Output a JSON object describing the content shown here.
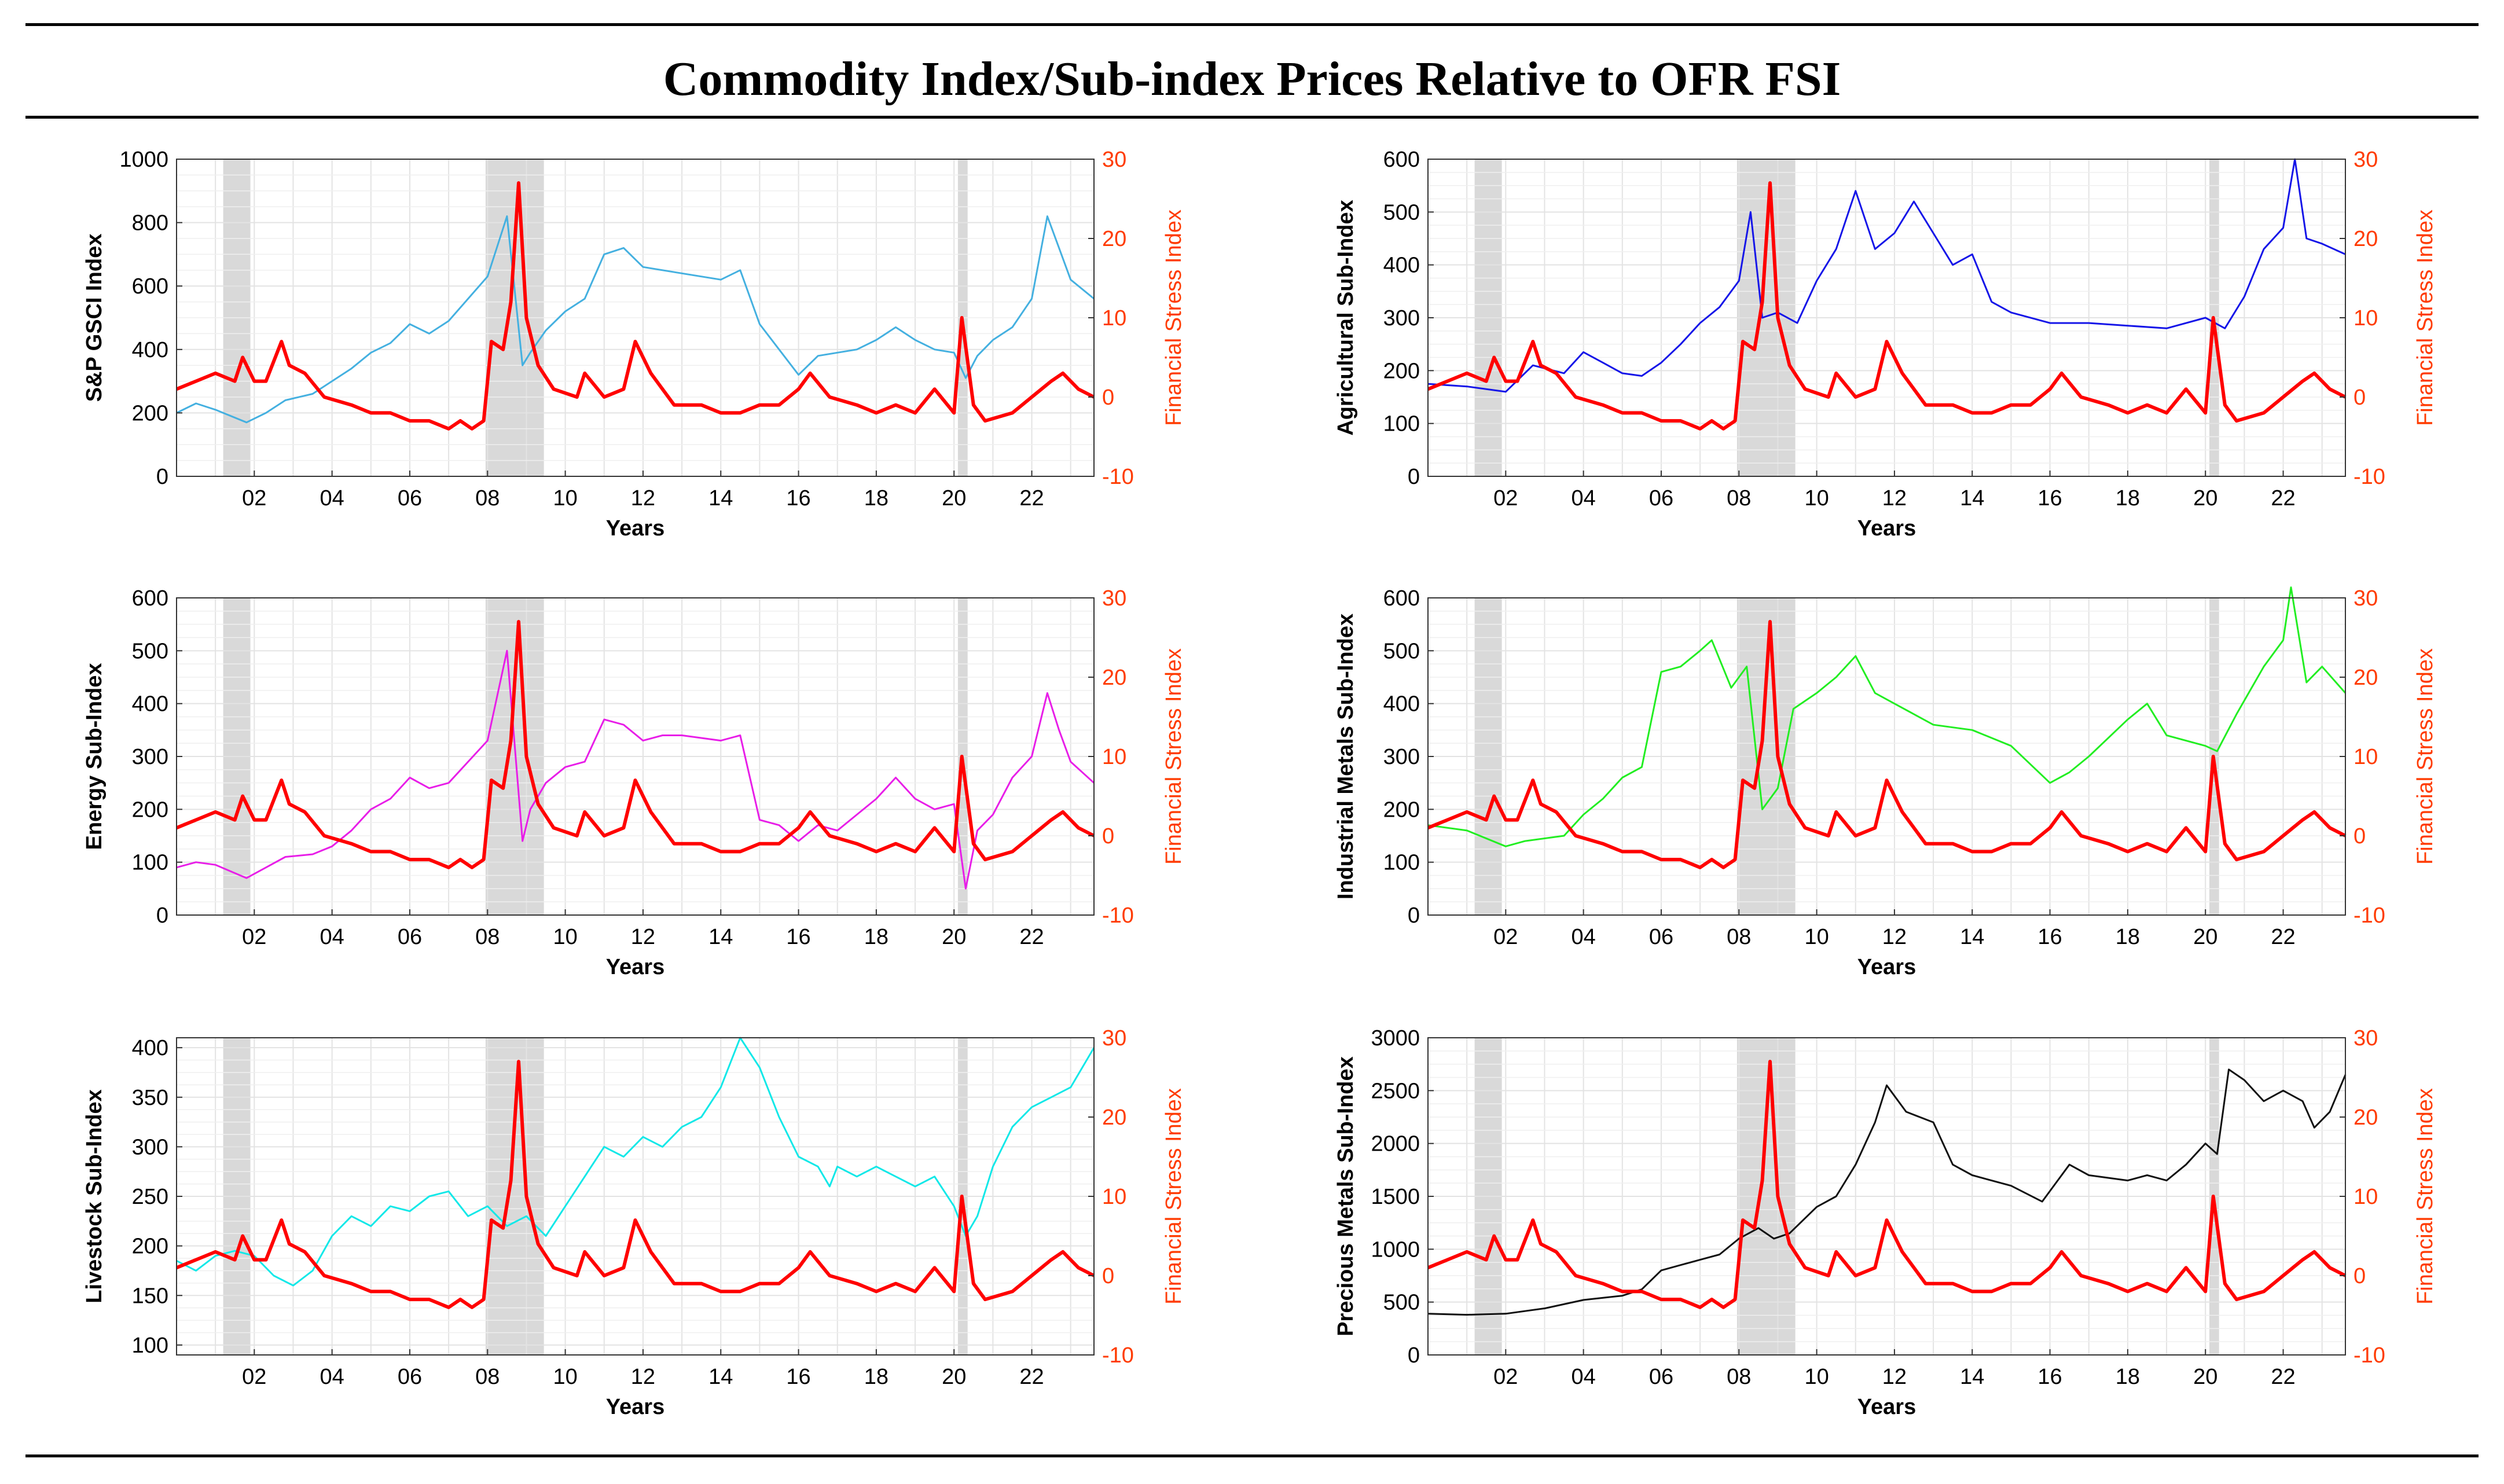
{
  "title": "Commodity Index/Sub-index Prices Relative to OFR FSI",
  "x_tick_labels": [
    "02",
    "04",
    "06",
    "08",
    "10",
    "12",
    "14",
    "16",
    "18",
    "20",
    "22"
  ],
  "right_axis_label": "Financial Stress Index",
  "x_axis_label": "Years",
  "recessions": [
    [
      2001.2,
      2001.9
    ],
    [
      2007.95,
      2009.45
    ],
    [
      2020.1,
      2020.35
    ]
  ],
  "colors": {
    "fsi": "#ff0000",
    "right_axis": "#ff3b00",
    "recession": "#d9d9d9"
  },
  "fsi_series": {
    "name": "OFR FSI",
    "x": [
      2000.0,
      2000.5,
      2001.0,
      2001.5,
      2001.7,
      2002.0,
      2002.3,
      2002.7,
      2002.9,
      2003.3,
      2003.8,
      2004.5,
      2005.0,
      2005.5,
      2006.0,
      2006.5,
      2007.0,
      2007.3,
      2007.6,
      2007.9,
      2008.1,
      2008.4,
      2008.6,
      2008.8,
      2009.0,
      2009.3,
      2009.7,
      2010.3,
      2010.5,
      2011.0,
      2011.5,
      2011.8,
      2012.2,
      2012.8,
      2013.5,
      2014.0,
      2014.5,
      2015.0,
      2015.5,
      2016.0,
      2016.3,
      2016.8,
      2017.5,
      2018.0,
      2018.5,
      2019.0,
      2019.5,
      2020.0,
      2020.2,
      2020.5,
      2020.8,
      2021.5,
      2022.0,
      2022.5,
      2022.8,
      2023.2,
      2023.6
    ],
    "values": [
      1,
      2,
      3,
      2,
      5,
      2,
      2,
      7,
      4,
      3,
      0,
      -1,
      -2,
      -2,
      -3,
      -3,
      -4,
      -3,
      -4,
      -3,
      7,
      6,
      12,
      27,
      10,
      4,
      1,
      0,
      3,
      0,
      1,
      7,
      3,
      -1,
      -1,
      -2,
      -2,
      -1,
      -1,
      1,
      3,
      0,
      -1,
      -2,
      -1,
      -2,
      1,
      -2,
      10,
      -1,
      -3,
      -2,
      0,
      2,
      3,
      1,
      0
    ]
  },
  "chart_data": [
    {
      "type": "line",
      "ylabel": "S&P GSCI Index",
      "xlabel": "Years",
      "right_ylabel": "Financial Stress Index",
      "ylim": [
        0,
        1000
      ],
      "yticks": [
        "0",
        "200",
        "400",
        "600",
        "800",
        "1000"
      ],
      "right_ylim": [
        -10,
        30
      ],
      "right_yticks": [
        "-10",
        "0",
        "10",
        "20",
        "30"
      ],
      "series": [
        {
          "name": "S&P GSCI",
          "color": "#44b0e0",
          "x": [
            2000.0,
            2000.5,
            2001.0,
            2001.8,
            2002.3,
            2002.8,
            2003.5,
            2004.0,
            2004.5,
            2005.0,
            2005.5,
            2006.0,
            2006.5,
            2007.0,
            2007.5,
            2008.0,
            2008.5,
            2008.9,
            2009.1,
            2009.5,
            2010.0,
            2010.5,
            2011.0,
            2011.5,
            2012.0,
            2012.5,
            2013.0,
            2014.0,
            2014.5,
            2015.0,
            2015.5,
            2016.0,
            2016.5,
            2017.0,
            2017.5,
            2018.0,
            2018.5,
            2019.0,
            2019.5,
            2020.0,
            2020.3,
            2020.6,
            2021.0,
            2021.5,
            2022.0,
            2022.4,
            2022.7,
            2023.0,
            2023.6
          ],
          "values": [
            200,
            230,
            210,
            170,
            200,
            240,
            260,
            300,
            340,
            390,
            420,
            480,
            450,
            490,
            560,
            630,
            820,
            350,
            390,
            460,
            520,
            560,
            700,
            720,
            660,
            650,
            640,
            620,
            650,
            480,
            400,
            320,
            380,
            390,
            400,
            430,
            470,
            430,
            400,
            390,
            310,
            380,
            430,
            470,
            560,
            820,
            720,
            620,
            560
          ]
        },
        {
          "name": "OFR FSI",
          "ref": "fsi",
          "axis": "right"
        }
      ]
    },
    {
      "type": "line",
      "ylabel": "Agricultural Sub-Index",
      "xlabel": "Years",
      "right_ylabel": "Financial Stress Index",
      "ylim": [
        0,
        600
      ],
      "yticks": [
        "0",
        "100",
        "200",
        "300",
        "400",
        "500",
        "600"
      ],
      "right_ylim": [
        -10,
        30
      ],
      "right_yticks": [
        "-10",
        "0",
        "10",
        "20",
        "30"
      ],
      "series": [
        {
          "name": "Agricultural",
          "color": "#1515e8",
          "x": [
            2000.0,
            2001.0,
            2002.0,
            2002.7,
            2003.5,
            2004.0,
            2004.5,
            2005.0,
            2005.5,
            2006.0,
            2006.5,
            2007.0,
            2007.5,
            2008.0,
            2008.3,
            2008.6,
            2009.0,
            2009.5,
            2010.0,
            2010.5,
            2011.0,
            2011.5,
            2012.0,
            2012.5,
            2013.0,
            2013.5,
            2014.0,
            2014.5,
            2015.0,
            2016.0,
            2017.0,
            2018.0,
            2019.0,
            2020.0,
            2020.5,
            2021.0,
            2021.5,
            2022.0,
            2022.3,
            2022.6,
            2023.0,
            2023.6
          ],
          "values": [
            175,
            170,
            160,
            210,
            195,
            235,
            215,
            195,
            190,
            215,
            250,
            290,
            320,
            370,
            500,
            300,
            310,
            290,
            370,
            430,
            540,
            430,
            460,
            520,
            460,
            400,
            420,
            330,
            310,
            290,
            290,
            285,
            280,
            300,
            280,
            340,
            430,
            470,
            600,
            450,
            440,
            420
          ]
        },
        {
          "name": "OFR FSI",
          "ref": "fsi",
          "axis": "right"
        }
      ]
    },
    {
      "type": "line",
      "ylabel": "Energy Sub-Index",
      "xlabel": "Years",
      "right_ylabel": "Financial Stress Index",
      "ylim": [
        0,
        600
      ],
      "yticks": [
        "0",
        "100",
        "200",
        "300",
        "400",
        "500",
        "600"
      ],
      "right_ylim": [
        -10,
        30
      ],
      "right_yticks": [
        "-10",
        "0",
        "10",
        "20",
        "30"
      ],
      "series": [
        {
          "name": "Energy",
          "color": "#e81ee8",
          "x": [
            2000.0,
            2000.5,
            2001.0,
            2001.8,
            2002.3,
            2002.8,
            2003.5,
            2004.0,
            2004.5,
            2005.0,
            2005.5,
            2006.0,
            2006.5,
            2007.0,
            2007.5,
            2008.0,
            2008.5,
            2008.9,
            2009.1,
            2009.5,
            2010.0,
            2010.5,
            2011.0,
            2011.5,
            2012.0,
            2012.5,
            2013.0,
            2014.0,
            2014.5,
            2015.0,
            2015.5,
            2016.0,
            2016.5,
            2017.0,
            2017.5,
            2018.0,
            2018.5,
            2019.0,
            2019.5,
            2020.0,
            2020.3,
            2020.6,
            2021.0,
            2021.5,
            2022.0,
            2022.4,
            2022.7,
            2023.0,
            2023.6
          ],
          "values": [
            90,
            100,
            95,
            70,
            90,
            110,
            115,
            130,
            160,
            200,
            220,
            260,
            240,
            250,
            290,
            330,
            500,
            140,
            200,
            250,
            280,
            290,
            370,
            360,
            330,
            340,
            340,
            330,
            340,
            180,
            170,
            140,
            170,
            160,
            190,
            220,
            260,
            220,
            200,
            210,
            50,
            160,
            190,
            260,
            300,
            420,
            350,
            290,
            250
          ]
        },
        {
          "name": "OFR FSI",
          "ref": "fsi",
          "axis": "right"
        }
      ]
    },
    {
      "type": "line",
      "ylabel": "Industrial Metals Sub-Index",
      "xlabel": "Years",
      "right_ylabel": "Financial Stress Index",
      "ylim": [
        0,
        600
      ],
      "yticks": [
        "0",
        "100",
        "200",
        "300",
        "400",
        "500",
        "600"
      ],
      "right_ylim": [
        -10,
        30
      ],
      "right_yticks": [
        "-10",
        "0",
        "10",
        "20",
        "30"
      ],
      "series": [
        {
          "name": "Industrial Metals",
          "color": "#22ee22",
          "x": [
            2000.0,
            2001.0,
            2002.0,
            2002.5,
            2003.5,
            2004.0,
            2004.5,
            2005.0,
            2005.5,
            2006.0,
            2006.5,
            2007.0,
            2007.3,
            2007.8,
            2008.2,
            2008.6,
            2009.0,
            2009.4,
            2010.0,
            2010.5,
            2011.0,
            2011.5,
            2012.0,
            2012.5,
            2013.0,
            2014.0,
            2015.0,
            2016.0,
            2016.5,
            2017.0,
            2018.0,
            2018.5,
            2019.0,
            2020.0,
            2020.3,
            2020.8,
            2021.5,
            2022.0,
            2022.2,
            2022.6,
            2023.0,
            2023.6
          ],
          "values": [
            170,
            160,
            130,
            140,
            150,
            190,
            220,
            260,
            280,
            460,
            470,
            500,
            520,
            430,
            470,
            200,
            240,
            390,
            420,
            450,
            490,
            420,
            400,
            380,
            360,
            350,
            320,
            250,
            270,
            300,
            370,
            400,
            340,
            320,
            310,
            380,
            470,
            520,
            620,
            440,
            470,
            420
          ]
        },
        {
          "name": "OFR FSI",
          "ref": "fsi",
          "axis": "right"
        }
      ]
    },
    {
      "type": "line",
      "ylabel": "Livestock Sub-Index",
      "xlabel": "Years",
      "right_ylabel": "Financial Stress Index",
      "ylim": [
        90,
        410
      ],
      "yticks": [
        "100",
        "150",
        "200",
        "250",
        "300",
        "350",
        "400"
      ],
      "right_ylim": [
        -10,
        30
      ],
      "right_yticks": [
        "-10",
        "0",
        "10",
        "20",
        "30"
      ],
      "series": [
        {
          "name": "Livestock",
          "color": "#11e8e8",
          "x": [
            2000.0,
            2000.5,
            2001.0,
            2001.5,
            2002.0,
            2002.5,
            2003.0,
            2003.5,
            2004.0,
            2004.5,
            2005.0,
            2005.5,
            2006.0,
            2006.5,
            2007.0,
            2007.5,
            2008.0,
            2008.5,
            2009.0,
            2009.5,
            2010.0,
            2010.5,
            2011.0,
            2011.5,
            2012.0,
            2012.5,
            2013.0,
            2013.5,
            2014.0,
            2014.5,
            2015.0,
            2015.5,
            2016.0,
            2016.5,
            2016.8,
            2017.0,
            2017.5,
            2018.0,
            2018.5,
            2019.0,
            2019.5,
            2020.0,
            2020.3,
            2020.6,
            2021.0,
            2021.5,
            2022.0,
            2022.5,
            2023.0,
            2023.6
          ],
          "values": [
            185,
            175,
            190,
            195,
            190,
            170,
            160,
            175,
            210,
            230,
            220,
            240,
            235,
            250,
            255,
            230,
            240,
            220,
            230,
            210,
            240,
            270,
            300,
            290,
            310,
            300,
            320,
            330,
            360,
            410,
            380,
            330,
            290,
            280,
            260,
            280,
            270,
            280,
            270,
            260,
            270,
            240,
            210,
            230,
            280,
            320,
            340,
            350,
            360,
            400
          ]
        },
        {
          "name": "OFR FSI",
          "ref": "fsi",
          "axis": "right"
        }
      ]
    },
    {
      "type": "line",
      "ylabel": "Precious Metals Sub-Index",
      "xlabel": "Years",
      "right_ylabel": "Financial Stress Index",
      "ylim": [
        0,
        3000
      ],
      "yticks": [
        "0",
        "500",
        "1000",
        "1500",
        "2000",
        "2500",
        "3000"
      ],
      "right_ylim": [
        -10,
        30
      ],
      "right_yticks": [
        "-10",
        "0",
        "10",
        "20",
        "30"
      ],
      "series": [
        {
          "name": "Precious Metals",
          "color": "#111111",
          "x": [
            2000.0,
            2001.0,
            2002.0,
            2003.0,
            2004.0,
            2005.0,
            2005.5,
            2006.0,
            2006.5,
            2007.0,
            2007.5,
            2008.0,
            2008.5,
            2008.9,
            2009.3,
            2010.0,
            2010.5,
            2011.0,
            2011.5,
            2011.8,
            2012.3,
            2013.0,
            2013.5,
            2014.0,
            2015.0,
            2015.8,
            2016.5,
            2017.0,
            2018.0,
            2018.5,
            2019.0,
            2019.5,
            2020.0,
            2020.3,
            2020.6,
            2021.0,
            2021.5,
            2022.0,
            2022.5,
            2022.8,
            2023.2,
            2023.6
          ],
          "values": [
            390,
            380,
            390,
            440,
            520,
            560,
            620,
            800,
            850,
            900,
            950,
            1100,
            1200,
            1100,
            1150,
            1400,
            1500,
            1800,
            2200,
            2550,
            2300,
            2200,
            1800,
            1700,
            1600,
            1450,
            1800,
            1700,
            1650,
            1700,
            1650,
            1800,
            2000,
            1900,
            2700,
            2600,
            2400,
            2500,
            2400,
            2150,
            2300,
            2650
          ]
        },
        {
          "name": "OFR FSI",
          "ref": "fsi",
          "axis": "right"
        }
      ]
    }
  ]
}
